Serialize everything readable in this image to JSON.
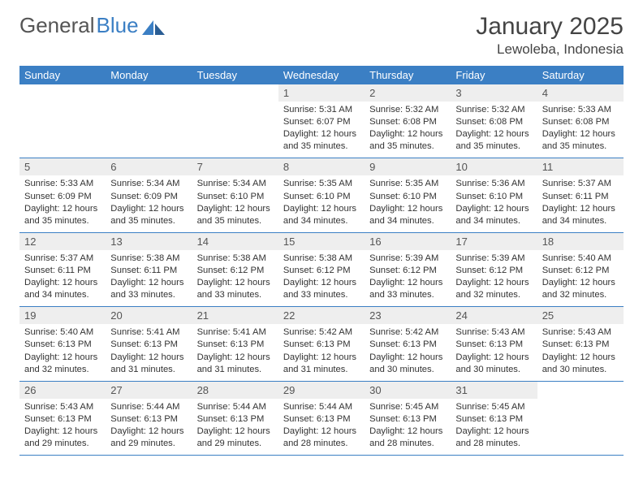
{
  "logo": {
    "text_gray": "General",
    "text_blue": "Blue"
  },
  "title": "January 2025",
  "location": "Lewoleba, Indonesia",
  "colors": {
    "header_bg": "#3b7fc4",
    "header_text": "#ffffff",
    "daynum_bg": "#eeeeee",
    "border": "#3b7fc4",
    "text": "#333333",
    "title_text": "#444444",
    "page_bg": "#ffffff"
  },
  "days_of_week": [
    "Sunday",
    "Monday",
    "Tuesday",
    "Wednesday",
    "Thursday",
    "Friday",
    "Saturday"
  ],
  "weeks": [
    [
      {
        "n": "",
        "sr": "",
        "ss": "",
        "dl": ""
      },
      {
        "n": "",
        "sr": "",
        "ss": "",
        "dl": ""
      },
      {
        "n": "",
        "sr": "",
        "ss": "",
        "dl": ""
      },
      {
        "n": "1",
        "sr": "Sunrise: 5:31 AM",
        "ss": "Sunset: 6:07 PM",
        "dl": "Daylight: 12 hours and 35 minutes."
      },
      {
        "n": "2",
        "sr": "Sunrise: 5:32 AM",
        "ss": "Sunset: 6:08 PM",
        "dl": "Daylight: 12 hours and 35 minutes."
      },
      {
        "n": "3",
        "sr": "Sunrise: 5:32 AM",
        "ss": "Sunset: 6:08 PM",
        "dl": "Daylight: 12 hours and 35 minutes."
      },
      {
        "n": "4",
        "sr": "Sunrise: 5:33 AM",
        "ss": "Sunset: 6:08 PM",
        "dl": "Daylight: 12 hours and 35 minutes."
      }
    ],
    [
      {
        "n": "5",
        "sr": "Sunrise: 5:33 AM",
        "ss": "Sunset: 6:09 PM",
        "dl": "Daylight: 12 hours and 35 minutes."
      },
      {
        "n": "6",
        "sr": "Sunrise: 5:34 AM",
        "ss": "Sunset: 6:09 PM",
        "dl": "Daylight: 12 hours and 35 minutes."
      },
      {
        "n": "7",
        "sr": "Sunrise: 5:34 AM",
        "ss": "Sunset: 6:10 PM",
        "dl": "Daylight: 12 hours and 35 minutes."
      },
      {
        "n": "8",
        "sr": "Sunrise: 5:35 AM",
        "ss": "Sunset: 6:10 PM",
        "dl": "Daylight: 12 hours and 34 minutes."
      },
      {
        "n": "9",
        "sr": "Sunrise: 5:35 AM",
        "ss": "Sunset: 6:10 PM",
        "dl": "Daylight: 12 hours and 34 minutes."
      },
      {
        "n": "10",
        "sr": "Sunrise: 5:36 AM",
        "ss": "Sunset: 6:10 PM",
        "dl": "Daylight: 12 hours and 34 minutes."
      },
      {
        "n": "11",
        "sr": "Sunrise: 5:37 AM",
        "ss": "Sunset: 6:11 PM",
        "dl": "Daylight: 12 hours and 34 minutes."
      }
    ],
    [
      {
        "n": "12",
        "sr": "Sunrise: 5:37 AM",
        "ss": "Sunset: 6:11 PM",
        "dl": "Daylight: 12 hours and 34 minutes."
      },
      {
        "n": "13",
        "sr": "Sunrise: 5:38 AM",
        "ss": "Sunset: 6:11 PM",
        "dl": "Daylight: 12 hours and 33 minutes."
      },
      {
        "n": "14",
        "sr": "Sunrise: 5:38 AM",
        "ss": "Sunset: 6:12 PM",
        "dl": "Daylight: 12 hours and 33 minutes."
      },
      {
        "n": "15",
        "sr": "Sunrise: 5:38 AM",
        "ss": "Sunset: 6:12 PM",
        "dl": "Daylight: 12 hours and 33 minutes."
      },
      {
        "n": "16",
        "sr": "Sunrise: 5:39 AM",
        "ss": "Sunset: 6:12 PM",
        "dl": "Daylight: 12 hours and 33 minutes."
      },
      {
        "n": "17",
        "sr": "Sunrise: 5:39 AM",
        "ss": "Sunset: 6:12 PM",
        "dl": "Daylight: 12 hours and 32 minutes."
      },
      {
        "n": "18",
        "sr": "Sunrise: 5:40 AM",
        "ss": "Sunset: 6:12 PM",
        "dl": "Daylight: 12 hours and 32 minutes."
      }
    ],
    [
      {
        "n": "19",
        "sr": "Sunrise: 5:40 AM",
        "ss": "Sunset: 6:13 PM",
        "dl": "Daylight: 12 hours and 32 minutes."
      },
      {
        "n": "20",
        "sr": "Sunrise: 5:41 AM",
        "ss": "Sunset: 6:13 PM",
        "dl": "Daylight: 12 hours and 31 minutes."
      },
      {
        "n": "21",
        "sr": "Sunrise: 5:41 AM",
        "ss": "Sunset: 6:13 PM",
        "dl": "Daylight: 12 hours and 31 minutes."
      },
      {
        "n": "22",
        "sr": "Sunrise: 5:42 AM",
        "ss": "Sunset: 6:13 PM",
        "dl": "Daylight: 12 hours and 31 minutes."
      },
      {
        "n": "23",
        "sr": "Sunrise: 5:42 AM",
        "ss": "Sunset: 6:13 PM",
        "dl": "Daylight: 12 hours and 30 minutes."
      },
      {
        "n": "24",
        "sr": "Sunrise: 5:43 AM",
        "ss": "Sunset: 6:13 PM",
        "dl": "Daylight: 12 hours and 30 minutes."
      },
      {
        "n": "25",
        "sr": "Sunrise: 5:43 AM",
        "ss": "Sunset: 6:13 PM",
        "dl": "Daylight: 12 hours and 30 minutes."
      }
    ],
    [
      {
        "n": "26",
        "sr": "Sunrise: 5:43 AM",
        "ss": "Sunset: 6:13 PM",
        "dl": "Daylight: 12 hours and 29 minutes."
      },
      {
        "n": "27",
        "sr": "Sunrise: 5:44 AM",
        "ss": "Sunset: 6:13 PM",
        "dl": "Daylight: 12 hours and 29 minutes."
      },
      {
        "n": "28",
        "sr": "Sunrise: 5:44 AM",
        "ss": "Sunset: 6:13 PM",
        "dl": "Daylight: 12 hours and 29 minutes."
      },
      {
        "n": "29",
        "sr": "Sunrise: 5:44 AM",
        "ss": "Sunset: 6:13 PM",
        "dl": "Daylight: 12 hours and 28 minutes."
      },
      {
        "n": "30",
        "sr": "Sunrise: 5:45 AM",
        "ss": "Sunset: 6:13 PM",
        "dl": "Daylight: 12 hours and 28 minutes."
      },
      {
        "n": "31",
        "sr": "Sunrise: 5:45 AM",
        "ss": "Sunset: 6:13 PM",
        "dl": "Daylight: 12 hours and 28 minutes."
      },
      {
        "n": "",
        "sr": "",
        "ss": "",
        "dl": ""
      }
    ]
  ]
}
